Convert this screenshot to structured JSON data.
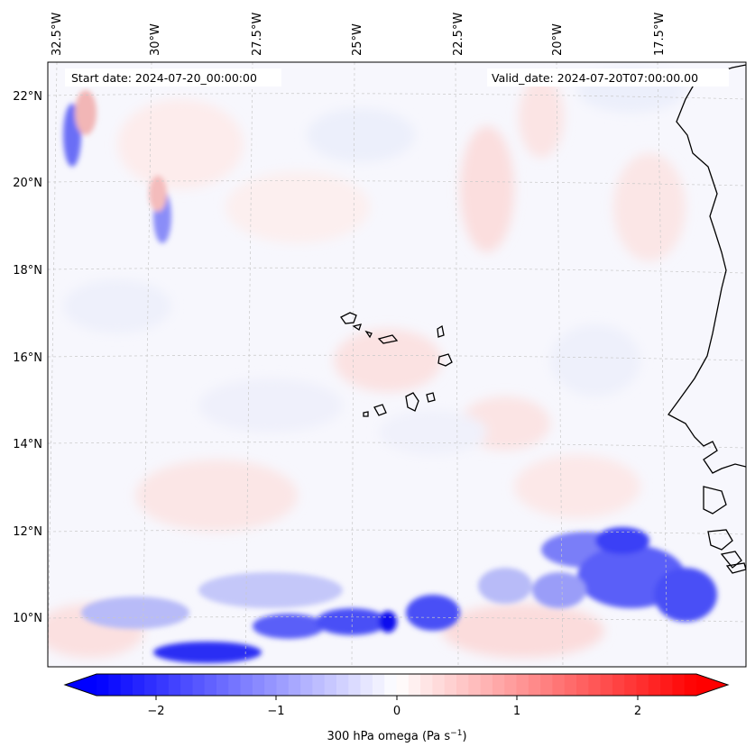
{
  "map": {
    "start_date": "Start date: 2024-07-20_00:00:00",
    "valid_date": "Valid_date: 2024-07-20T07:00:00.00",
    "lon_labels": [
      "32.5°W",
      "30°W",
      "27.5°W",
      "25°W",
      "22.5°W",
      "20°W",
      "17.5°W"
    ],
    "lat_labels": [
      "22°N",
      "20°N",
      "18°N",
      "16°N",
      "14°N",
      "12°N",
      "10°N"
    ]
  },
  "colorbar": {
    "ticks": [
      "−2",
      "−1",
      "0",
      "1",
      "2"
    ],
    "label": "300 hPa omega (Pa s",
    "label_exp": "−1",
    "label_end": ")",
    "colors": {
      "negative": "#0000ff",
      "zero": "#ffffff",
      "positive": "#ff0000"
    }
  }
}
